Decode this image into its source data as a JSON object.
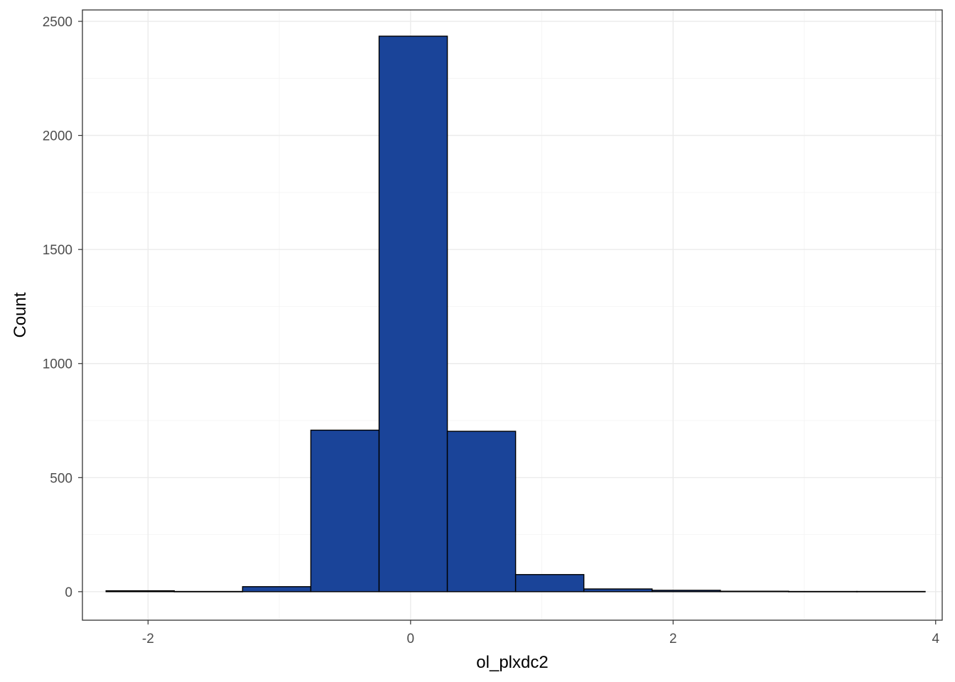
{
  "chart_data": {
    "type": "bar",
    "subtype": "histogram",
    "xlabel": "ol_plxdc2",
    "ylabel": "Count",
    "xlim": [
      -2.5,
      4.05
    ],
    "ylim": [
      -125,
      2550
    ],
    "x_ticks": [
      -2,
      0,
      2,
      4
    ],
    "y_ticks": [
      0,
      500,
      1000,
      1500,
      2000,
      2500
    ],
    "grid": true,
    "bin_width": 0.52,
    "bins": [
      {
        "x0": -2.32,
        "x1": -1.8,
        "count": 4
      },
      {
        "x0": -1.8,
        "x1": -1.28,
        "count": 1
      },
      {
        "x0": -1.28,
        "x1": -0.76,
        "count": 22
      },
      {
        "x0": -0.76,
        "x1": -0.24,
        "count": 708
      },
      {
        "x0": -0.24,
        "x1": 0.28,
        "count": 2435
      },
      {
        "x0": 0.28,
        "x1": 0.8,
        "count": 703
      },
      {
        "x0": 0.8,
        "x1": 1.32,
        "count": 75
      },
      {
        "x0": 1.32,
        "x1": 1.84,
        "count": 12
      },
      {
        "x0": 1.84,
        "x1": 2.36,
        "count": 6
      },
      {
        "x0": 2.36,
        "x1": 2.88,
        "count": 2
      },
      {
        "x0": 2.88,
        "x1": 3.4,
        "count": 1
      },
      {
        "x0": 3.4,
        "x1": 3.92,
        "count": 1
      }
    ],
    "colors": {
      "bar_fill": "#1a4499",
      "bar_outline": "#000000"
    }
  }
}
